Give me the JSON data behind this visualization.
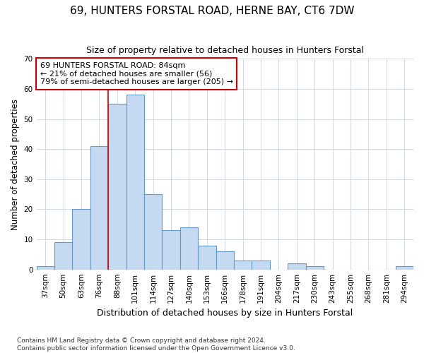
{
  "title": "69, HUNTERS FORSTAL ROAD, HERNE BAY, CT6 7DW",
  "subtitle": "Size of property relative to detached houses in Hunters Forstal",
  "xlabel": "Distribution of detached houses by size in Hunters Forstal",
  "ylabel": "Number of detached properties",
  "categories": [
    "37sqm",
    "50sqm",
    "63sqm",
    "76sqm",
    "88sqm",
    "101sqm",
    "114sqm",
    "127sqm",
    "140sqm",
    "153sqm",
    "166sqm",
    "178sqm",
    "191sqm",
    "204sqm",
    "217sqm",
    "230sqm",
    "243sqm",
    "255sqm",
    "268sqm",
    "281sqm",
    "294sqm"
  ],
  "values": [
    1,
    9,
    20,
    41,
    55,
    58,
    25,
    13,
    14,
    8,
    6,
    3,
    3,
    0,
    2,
    1,
    0,
    0,
    0,
    0,
    1
  ],
  "bar_color": "#c5d9f0",
  "bar_edge_color": "#6699cc",
  "ylim": [
    0,
    70
  ],
  "yticks": [
    0,
    10,
    20,
    30,
    40,
    50,
    60,
    70
  ],
  "red_line_index": 4,
  "annotation_title": "69 HUNTERS FORSTAL ROAD: 84sqm",
  "annotation_line1": "← 21% of detached houses are smaller (56)",
  "annotation_line2": "79% of semi-detached houses are larger (205) →",
  "footnote1": "Contains HM Land Registry data © Crown copyright and database right 2024.",
  "footnote2": "Contains public sector information licensed under the Open Government Licence v3.0.",
  "background_color": "#ffffff",
  "plot_bg_color": "#ffffff",
  "grid_color": "#d0d8e8",
  "title_fontsize": 11,
  "subtitle_fontsize": 9
}
